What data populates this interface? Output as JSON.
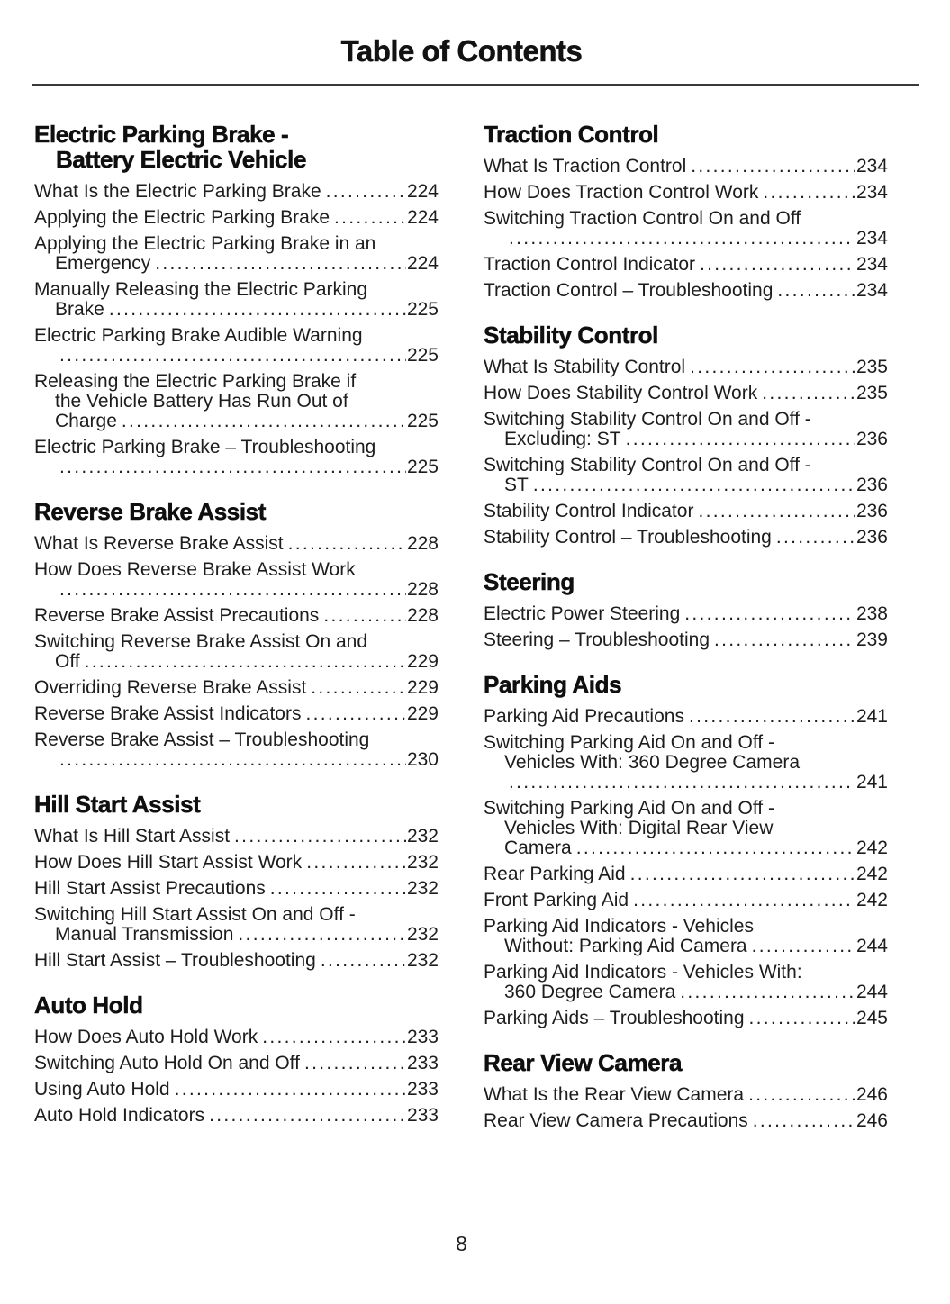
{
  "page": {
    "title": "Table of Contents",
    "footer_page_number": "8",
    "text_color": "#1d1d1d",
    "heading_color": "#0f0f0f"
  },
  "columns": {
    "left": {
      "sections": [
        {
          "heading_lines": [
            "Electric Parking Brake -",
            "Battery Electric Vehicle"
          ],
          "entries": [
            {
              "lines": [
                "What Is the Electric Parking Brake"
              ],
              "page": "224"
            },
            {
              "lines": [
                "Applying the Electric Parking Brake"
              ],
              "page": "224"
            },
            {
              "lines": [
                "Applying the Electric Parking Brake in an",
                "Emergency "
              ],
              "page": "224"
            },
            {
              "lines": [
                "Manually Releasing the Electric Parking",
                "Brake"
              ],
              "page": "225"
            },
            {
              "lines": [
                "Electric Parking Brake Audible Warning",
                ""
              ],
              "page": "225"
            },
            {
              "lines": [
                "Releasing the Electric Parking Brake if",
                "the Vehicle Battery Has Run Out of",
                "Charge"
              ],
              "page": "225"
            },
            {
              "lines": [
                "Electric Parking Brake – Troubleshooting",
                ""
              ],
              "page": "225"
            }
          ]
        },
        {
          "heading_lines": [
            "Reverse Brake Assist"
          ],
          "entries": [
            {
              "lines": [
                "What Is Reverse Brake Assist"
              ],
              "page": "228"
            },
            {
              "lines": [
                "How Does Reverse Brake Assist Work",
                ""
              ],
              "page": "228"
            },
            {
              "lines": [
                "Reverse Brake Assist Precautions"
              ],
              "page": "228"
            },
            {
              "lines": [
                "Switching Reverse Brake Assist On and",
                "Off "
              ],
              "page": "229"
            },
            {
              "lines": [
                "Overriding Reverse Brake Assist"
              ],
              "page": "229"
            },
            {
              "lines": [
                "Reverse Brake Assist Indicators"
              ],
              "page": "229"
            },
            {
              "lines": [
                "Reverse Brake Assist – Troubleshooting",
                ""
              ],
              "page": "230"
            }
          ]
        },
        {
          "heading_lines": [
            "Hill Start Assist"
          ],
          "entries": [
            {
              "lines": [
                "What Is Hill Start Assist"
              ],
              "page": "232"
            },
            {
              "lines": [
                "How Does Hill Start Assist Work"
              ],
              "page": "232"
            },
            {
              "lines": [
                "Hill Start Assist Precautions"
              ],
              "page": "232"
            },
            {
              "lines": [
                "Switching Hill Start Assist On and Off -",
                "Manual Transmission"
              ],
              "page": "232"
            },
            {
              "lines": [
                "Hill Start Assist – Troubleshooting"
              ],
              "page": "232"
            }
          ]
        },
        {
          "heading_lines": [
            "Auto Hold"
          ],
          "entries": [
            {
              "lines": [
                "How Does Auto Hold Work"
              ],
              "page": "233"
            },
            {
              "lines": [
                "Switching Auto Hold On and Off"
              ],
              "page": "233"
            },
            {
              "lines": [
                "Using Auto Hold"
              ],
              "page": "233"
            },
            {
              "lines": [
                "Auto Hold Indicators"
              ],
              "page": "233"
            }
          ]
        }
      ]
    },
    "right": {
      "sections": [
        {
          "heading_lines": [
            "Traction Control"
          ],
          "entries": [
            {
              "lines": [
                "What Is Traction Control"
              ],
              "page": "234"
            },
            {
              "lines": [
                "How Does Traction Control Work"
              ],
              "page": "234"
            },
            {
              "lines": [
                "Switching Traction Control On and Off",
                ""
              ],
              "page": "234"
            },
            {
              "lines": [
                "Traction Control Indicator"
              ],
              "page": "234"
            },
            {
              "lines": [
                "Traction Control – Troubleshooting"
              ],
              "page": "234"
            }
          ]
        },
        {
          "heading_lines": [
            "Stability Control"
          ],
          "entries": [
            {
              "lines": [
                "What Is Stability Control"
              ],
              "page": "235"
            },
            {
              "lines": [
                "How Does Stability Control Work"
              ],
              "page": "235"
            },
            {
              "lines": [
                "Switching Stability Control On and Off -",
                "Excluding: ST"
              ],
              "page": "236"
            },
            {
              "lines": [
                "Switching Stability Control On and Off -",
                "ST "
              ],
              "page": "236"
            },
            {
              "lines": [
                "Stability Control Indicator"
              ],
              "page": "236"
            },
            {
              "lines": [
                "Stability Control – Troubleshooting"
              ],
              "page": "236"
            }
          ]
        },
        {
          "heading_lines": [
            "Steering"
          ],
          "entries": [
            {
              "lines": [
                "Electric Power Steering"
              ],
              "page": "238"
            },
            {
              "lines": [
                "Steering – Troubleshooting"
              ],
              "page": "239"
            }
          ]
        },
        {
          "heading_lines": [
            "Parking Aids"
          ],
          "entries": [
            {
              "lines": [
                "Parking Aid Precautions"
              ],
              "page": "241"
            },
            {
              "lines": [
                "Switching Parking Aid On and Off -",
                "Vehicles With: 360 Degree Camera",
                ""
              ],
              "page": "241"
            },
            {
              "lines": [
                "Switching Parking Aid On and Off -",
                "Vehicles With: Digital Rear View",
                "Camera"
              ],
              "page": "242"
            },
            {
              "lines": [
                "Rear Parking Aid"
              ],
              "page": "242"
            },
            {
              "lines": [
                "Front Parking Aid"
              ],
              "page": "242"
            },
            {
              "lines": [
                "Parking Aid Indicators - Vehicles",
                "Without: Parking Aid Camera"
              ],
              "page": "244"
            },
            {
              "lines": [
                "Parking Aid Indicators - Vehicles With:",
                "360 Degree Camera"
              ],
              "page": "244"
            },
            {
              "lines": [
                "Parking Aids – Troubleshooting"
              ],
              "page": "245"
            }
          ]
        },
        {
          "heading_lines": [
            "Rear View Camera"
          ],
          "entries": [
            {
              "lines": [
                "What Is the Rear View Camera"
              ],
              "page": "246"
            },
            {
              "lines": [
                "Rear View Camera Precautions"
              ],
              "page": "246"
            }
          ]
        }
      ]
    }
  }
}
